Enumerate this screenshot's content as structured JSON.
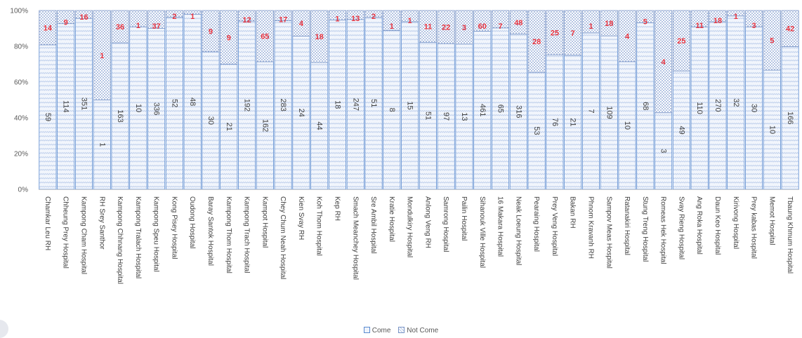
{
  "chart_data": {
    "type": "bar",
    "stacked": "percent",
    "title": "",
    "xlabel": "",
    "ylabel": "",
    "ylim": [
      0,
      100
    ],
    "yticks": [
      "0%",
      "20%",
      "40%",
      "60%",
      "80%",
      "100%"
    ],
    "grid": false,
    "legend_position": "bottom",
    "categories": [
      "Chamkar Leu RH",
      "Chheung Prey Hospital",
      "Kampong Cham Hospital",
      "RH Srey Santhor",
      "Kampong Chhnang Hospital",
      "Kampong Tralach Hospital",
      "Kampong Speu Hospital",
      "Kong Pisey Hospital",
      "Oudong Hospital",
      "Baray Santok Hospital",
      "Kampong Thom Hospital",
      "Kampong Trach Hospital",
      "Kampot Hospital",
      "Chey Chum Neah Hospital",
      "Kien Svay RH",
      "Koh Thom Hospital",
      "Kep RH",
      "Smach Meanchey Hospital",
      "Sre Ambil Hospital",
      "Kratie Hospital",
      "Mondulkiry Hospital",
      "Anlong Veng RH",
      "Samrong Hospital",
      "Pailin Hospital",
      "Sihanouk Ville Hospital",
      "16 Makara Hospital",
      "Neak Loeung Hospital",
      "Pearaing Hospital",
      "Prey Veng Hospital",
      "Bakan RH",
      "Phnom Kravanh RH",
      "Sampov Meas Hospital",
      "Ratanakiri Hospital",
      "Stung Treng Hospital",
      "Romeas Hek Hospital",
      "Svay Rieng Hospital",
      "Ang Roka Hospital",
      "Daun Keo Hospital",
      "Kirivong Hospital",
      "Prey kabas Hospital",
      "Memot Hospital",
      "Tbaung Khmum Hospital"
    ],
    "series": [
      {
        "name": "Come",
        "color": "#5b8bd0",
        "values": [
          59,
          114,
          351,
          1,
          163,
          10,
          336,
          52,
          48,
          30,
          21,
          192,
          162,
          283,
          24,
          44,
          18,
          247,
          51,
          8,
          15,
          51,
          97,
          13,
          461,
          65,
          316,
          53,
          76,
          21,
          7,
          109,
          10,
          68,
          3,
          49,
          110,
          270,
          32,
          30,
          10,
          166
        ]
      },
      {
        "name": "Not Come",
        "color": "#7a95c6",
        "values": [
          14,
          9,
          16,
          1,
          36,
          1,
          37,
          2,
          1,
          9,
          9,
          12,
          65,
          17,
          4,
          18,
          1,
          13,
          2,
          1,
          1,
          11,
          22,
          3,
          60,
          7,
          48,
          28,
          25,
          7,
          1,
          18,
          4,
          5,
          4,
          25,
          11,
          18,
          1,
          3,
          5,
          42
        ]
      }
    ]
  }
}
